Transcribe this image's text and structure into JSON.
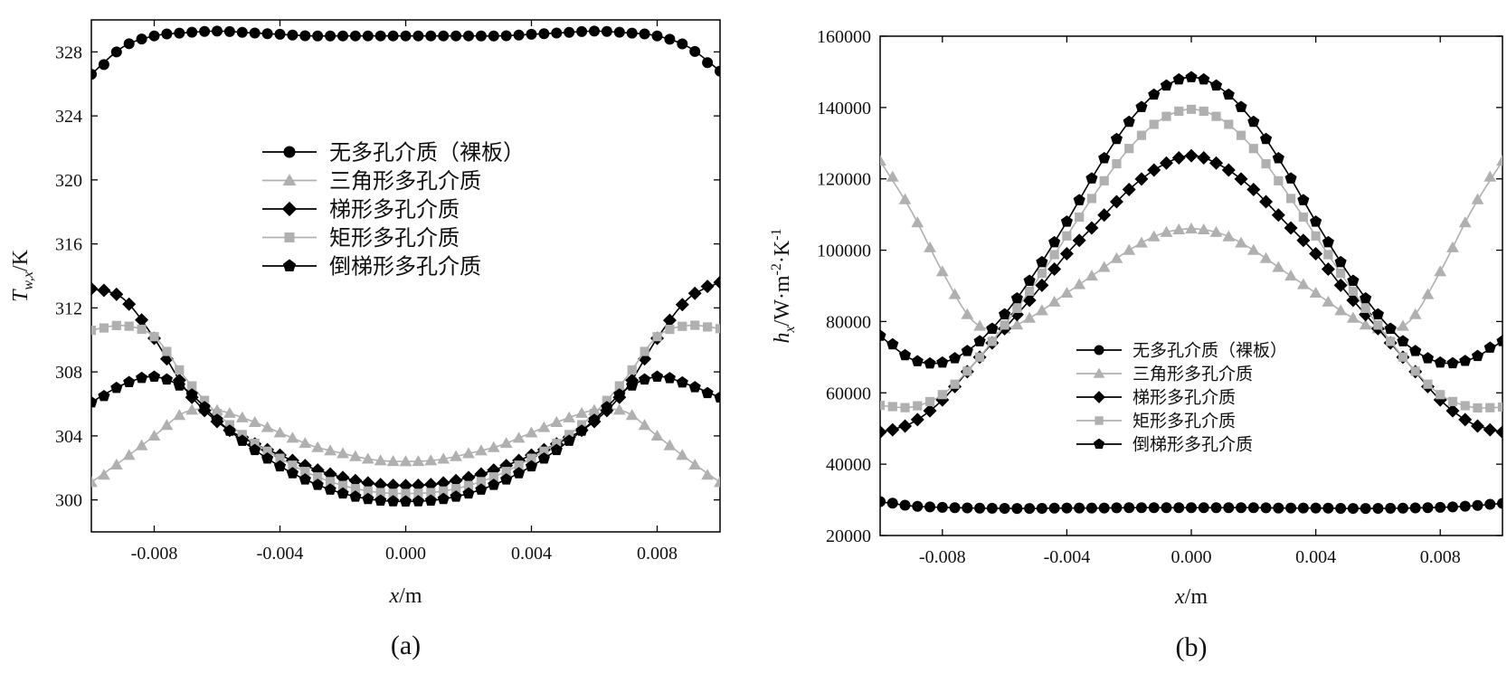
{
  "chart_data": [
    {
      "type": "line",
      "panel_label": "(a)",
      "xlabel": "x/m",
      "ylabel": "T_{w,x}/K",
      "xlim": [
        -0.01,
        0.01
      ],
      "ylim": [
        298,
        330
      ],
      "xticks": [
        -0.008,
        -0.004,
        0.0,
        0.004,
        0.008
      ],
      "xtick_labels": [
        "-0.008",
        "-0.004",
        "0.000",
        "0.004",
        "0.008"
      ],
      "yticks": [
        300,
        304,
        308,
        312,
        316,
        320,
        324,
        328
      ],
      "ytick_labels": [
        "300",
        "304",
        "308",
        "312",
        "316",
        "320",
        "324",
        "328"
      ],
      "legend_position": "center",
      "series": [
        {
          "name": "无多孔介质（裸板）",
          "color": "#000000",
          "marker": "circle",
          "x": [
            -0.01,
            -0.009,
            -0.008,
            -0.007,
            -0.006,
            -0.005,
            -0.004,
            -0.003,
            -0.002,
            -0.001,
            0.0,
            0.001,
            0.002,
            0.003,
            0.004,
            0.005,
            0.006,
            0.007,
            0.008,
            0.009,
            0.01
          ],
          "y": [
            326.6,
            328.3,
            329.0,
            329.2,
            329.3,
            329.2,
            329.1,
            329.0,
            329.0,
            329.0,
            329.0,
            329.0,
            329.0,
            329.0,
            329.1,
            329.2,
            329.3,
            329.2,
            329.0,
            328.3,
            326.8
          ]
        },
        {
          "name": "三角形多孔介质",
          "color": "#b0b0b0",
          "marker": "triangle",
          "x": [
            -0.01,
            -0.009,
            -0.008,
            -0.007,
            -0.006,
            -0.005,
            -0.004,
            -0.003,
            -0.002,
            -0.001,
            0.0,
            0.001,
            0.002,
            0.003,
            0.004,
            0.005,
            0.006,
            0.007,
            0.008,
            0.009,
            0.01
          ],
          "y": [
            301.1,
            302.5,
            304.0,
            305.5,
            305.6,
            305.0,
            304.2,
            303.4,
            302.9,
            302.5,
            302.4,
            302.5,
            302.9,
            303.4,
            304.2,
            305.0,
            305.6,
            305.5,
            304.0,
            302.5,
            301.1
          ]
        },
        {
          "name": "梯形多孔介质",
          "color": "#000000",
          "marker": "diamond",
          "x": [
            -0.01,
            -0.009,
            -0.008,
            -0.007,
            -0.006,
            -0.005,
            -0.004,
            -0.003,
            -0.002,
            -0.001,
            0.0,
            0.001,
            0.002,
            0.003,
            0.004,
            0.005,
            0.006,
            0.007,
            0.008,
            0.009,
            0.01
          ],
          "y": [
            313.2,
            312.6,
            310.1,
            306.9,
            304.9,
            303.7,
            302.8,
            302.0,
            301.4,
            301.0,
            300.9,
            301.0,
            301.4,
            302.0,
            302.8,
            303.7,
            304.9,
            306.9,
            310.1,
            312.6,
            313.6
          ]
        },
        {
          "name": "矩形多孔介质",
          "color": "#b0b0b0",
          "marker": "square",
          "x": [
            -0.01,
            -0.009,
            -0.008,
            -0.007,
            -0.006,
            -0.005,
            -0.004,
            -0.003,
            -0.002,
            -0.001,
            0.0,
            0.001,
            0.002,
            0.003,
            0.004,
            0.005,
            0.006,
            0.007,
            0.008,
            0.009,
            0.01
          ],
          "y": [
            310.6,
            310.9,
            310.2,
            307.6,
            305.4,
            303.8,
            302.6,
            301.6,
            300.9,
            300.5,
            300.4,
            300.5,
            300.9,
            301.6,
            302.6,
            303.8,
            305.4,
            307.6,
            310.2,
            310.9,
            310.7
          ]
        },
        {
          "name": "倒梯形多孔介质",
          "color": "#000000",
          "marker": "pentagon",
          "x": [
            -0.01,
            -0.009,
            -0.008,
            -0.007,
            -0.006,
            -0.005,
            -0.004,
            -0.003,
            -0.002,
            -0.001,
            0.0,
            0.001,
            0.002,
            0.003,
            0.004,
            0.005,
            0.006,
            0.007,
            0.008,
            0.009,
            0.01
          ],
          "y": [
            306.1,
            307.2,
            307.7,
            306.9,
            305.0,
            303.4,
            302.1,
            301.1,
            300.4,
            300.0,
            299.9,
            300.0,
            300.4,
            301.1,
            302.1,
            303.4,
            305.0,
            306.9,
            307.7,
            307.2,
            306.4
          ]
        }
      ]
    },
    {
      "type": "line",
      "panel_label": "(b)",
      "xlabel": "x/m",
      "ylabel": "h_x/W·m^{-2}·K^{-1}",
      "xlim": [
        -0.01,
        0.01
      ],
      "ylim": [
        20000,
        160000
      ],
      "xticks": [
        -0.008,
        -0.004,
        0.0,
        0.004,
        0.008
      ],
      "xtick_labels": [
        "-0.008",
        "-0.004",
        "0.000",
        "0.004",
        "0.008"
      ],
      "yticks": [
        20000,
        40000,
        60000,
        80000,
        100000,
        120000,
        140000,
        160000
      ],
      "ytick_labels": [
        "20000",
        "40000",
        "60000",
        "80000",
        "100000",
        "120000",
        "140000",
        "160000"
      ],
      "legend_position": "lower-center",
      "series": [
        {
          "name": "无多孔介质（裸板）",
          "color": "#000000",
          "marker": "circle",
          "x": [
            -0.01,
            -0.009,
            -0.008,
            -0.007,
            -0.006,
            -0.005,
            -0.004,
            -0.003,
            -0.002,
            -0.001,
            0.0,
            0.001,
            0.002,
            0.003,
            0.004,
            0.005,
            0.006,
            0.007,
            0.008,
            0.009,
            0.01
          ],
          "y": [
            29500,
            28300,
            27900,
            27700,
            27600,
            27600,
            27700,
            27700,
            27800,
            27800,
            27800,
            27800,
            27800,
            27700,
            27700,
            27600,
            27600,
            27700,
            27900,
            28300,
            29000
          ]
        },
        {
          "name": "三角形多孔介质",
          "color": "#b0b0b0",
          "marker": "triangle",
          "x": [
            -0.01,
            -0.009,
            -0.008,
            -0.007,
            -0.006,
            -0.005,
            -0.004,
            -0.003,
            -0.002,
            -0.001,
            0.0,
            0.001,
            0.002,
            0.003,
            0.004,
            0.005,
            0.006,
            0.007,
            0.008,
            0.009,
            0.01
          ],
          "y": [
            125000,
            111000,
            94000,
            80000,
            78000,
            82000,
            88000,
            94000,
            100000,
            104500,
            106000,
            104500,
            100000,
            94000,
            88000,
            82000,
            78000,
            80000,
            94000,
            111000,
            125000
          ]
        },
        {
          "name": "梯形多孔介质",
          "color": "#000000",
          "marker": "diamond",
          "x": [
            -0.01,
            -0.009,
            -0.008,
            -0.007,
            -0.006,
            -0.005,
            -0.004,
            -0.003,
            -0.002,
            -0.001,
            0.0,
            0.001,
            0.002,
            0.003,
            0.004,
            0.005,
            0.006,
            0.007,
            0.008,
            0.009,
            0.01
          ],
          "y": [
            49000,
            51500,
            58000,
            68000,
            78000,
            88000,
            99000,
            108000,
            117000,
            123500,
            126500,
            123500,
            117000,
            108000,
            99000,
            88000,
            78000,
            68000,
            58000,
            51500,
            49000
          ]
        },
        {
          "name": "矩形多孔介质",
          "color": "#b0b0b0",
          "marker": "square",
          "x": [
            -0.01,
            -0.009,
            -0.008,
            -0.007,
            -0.006,
            -0.005,
            -0.004,
            -0.003,
            -0.002,
            -0.001,
            0.0,
            0.001,
            0.002,
            0.003,
            0.004,
            0.005,
            0.006,
            0.007,
            0.008,
            0.009,
            0.01
          ],
          "y": [
            56500,
            56000,
            59500,
            68000,
            79000,
            91000,
            104000,
            117000,
            128500,
            136500,
            139500,
            136500,
            128500,
            117000,
            104000,
            91000,
            79000,
            68000,
            59500,
            56000,
            56000
          ]
        },
        {
          "name": "倒梯形多孔介质",
          "color": "#000000",
          "marker": "pentagon",
          "x": [
            -0.01,
            -0.009,
            -0.008,
            -0.007,
            -0.006,
            -0.005,
            -0.004,
            -0.003,
            -0.002,
            -0.001,
            0.0,
            0.001,
            0.002,
            0.003,
            0.004,
            0.005,
            0.006,
            0.007,
            0.008,
            0.009,
            0.01
          ],
          "y": [
            76000,
            69500,
            68500,
            73000,
            82000,
            94000,
            108000,
            123000,
            136000,
            145000,
            148500,
            145000,
            136000,
            123000,
            108000,
            94000,
            82000,
            73000,
            68500,
            69500,
            74500
          ]
        }
      ]
    }
  ]
}
